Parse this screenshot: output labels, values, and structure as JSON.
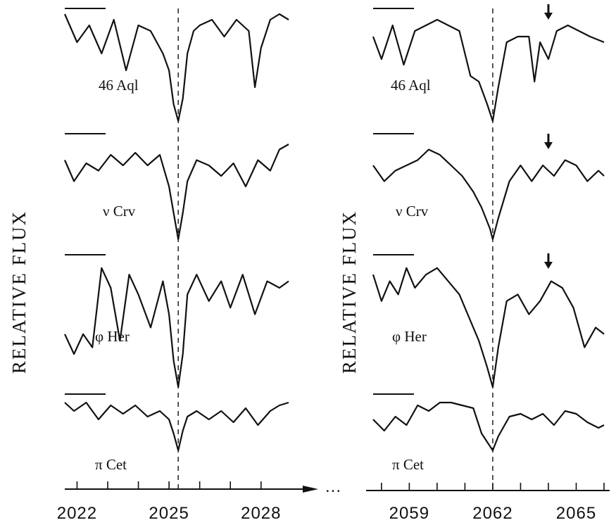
{
  "chart_data": [
    {
      "type": "line",
      "ylabel": "RELATIVE FLUX",
      "xlabel": "",
      "xlim": [
        2021.6,
        2028.9
      ],
      "x_ticks": [
        2022,
        2025,
        2028
      ],
      "line_center": 2025.3,
      "series": [
        {
          "name": "46 Aql",
          "x": [
            2021.6,
            2022.0,
            2022.4,
            2022.8,
            2023.2,
            2023.6,
            2024.0,
            2024.4,
            2024.8,
            2025.0,
            2025.15,
            2025.3,
            2025.45,
            2025.6,
            2025.8,
            2026.0,
            2026.4,
            2026.8,
            2027.2,
            2027.6,
            2027.8,
            2028.0,
            2028.3,
            2028.6,
            2028.9
          ],
          "y": [
            0.95,
            0.7,
            0.85,
            0.6,
            0.9,
            0.45,
            0.85,
            0.8,
            0.6,
            0.45,
            0.15,
            0.0,
            0.2,
            0.6,
            0.8,
            0.85,
            0.9,
            0.75,
            0.9,
            0.8,
            0.3,
            0.65,
            0.9,
            0.95,
            0.9
          ]
        },
        {
          "name": "ν Crv",
          "x": [
            2021.6,
            2021.9,
            2022.3,
            2022.7,
            2023.1,
            2023.5,
            2023.9,
            2024.3,
            2024.7,
            2025.0,
            2025.15,
            2025.3,
            2025.45,
            2025.6,
            2025.9,
            2026.3,
            2026.7,
            2027.1,
            2027.5,
            2027.9,
            2028.3,
            2028.6,
            2028.9
          ],
          "y": [
            0.75,
            0.55,
            0.72,
            0.65,
            0.8,
            0.7,
            0.82,
            0.7,
            0.8,
            0.5,
            0.25,
            0.0,
            0.25,
            0.55,
            0.75,
            0.7,
            0.6,
            0.72,
            0.5,
            0.75,
            0.65,
            0.85,
            0.9
          ]
        },
        {
          "name": "φ Her",
          "x": [
            2021.6,
            2021.9,
            2022.2,
            2022.5,
            2022.8,
            2023.1,
            2023.4,
            2023.7,
            2024.0,
            2024.4,
            2024.8,
            2025.0,
            2025.15,
            2025.3,
            2025.45,
            2025.6,
            2025.9,
            2026.3,
            2026.7,
            2027.0,
            2027.4,
            2027.8,
            2028.2,
            2028.6,
            2028.9
          ],
          "y": [
            0.4,
            0.25,
            0.4,
            0.3,
            0.9,
            0.75,
            0.35,
            0.85,
            0.7,
            0.45,
            0.8,
            0.55,
            0.2,
            0.0,
            0.25,
            0.7,
            0.85,
            0.65,
            0.8,
            0.6,
            0.85,
            0.55,
            0.8,
            0.75,
            0.8
          ]
        },
        {
          "name": "π Cet",
          "x": [
            2021.6,
            2021.9,
            2022.3,
            2022.7,
            2023.1,
            2023.5,
            2023.9,
            2024.3,
            2024.7,
            2025.0,
            2025.15,
            2025.3,
            2025.45,
            2025.6,
            2025.9,
            2026.3,
            2026.7,
            2027.1,
            2027.5,
            2027.9,
            2028.3,
            2028.6,
            2028.9
          ],
          "y": [
            0.85,
            0.7,
            0.85,
            0.55,
            0.8,
            0.65,
            0.8,
            0.6,
            0.7,
            0.55,
            0.3,
            0.0,
            0.35,
            0.6,
            0.7,
            0.55,
            0.7,
            0.5,
            0.75,
            0.45,
            0.7,
            0.8,
            0.85
          ]
        }
      ],
      "labels": [
        "46 Aql",
        "ν Crv",
        "φ Her",
        "π Cet"
      ]
    },
    {
      "type": "line",
      "ylabel": "RELATIVE FLUX",
      "xlabel": "",
      "xlim": [
        2057.7,
        2066.0
      ],
      "x_ticks": [
        2059,
        2062,
        2065
      ],
      "line_center": 2062.0,
      "arrow_at": 2064.0,
      "series": [
        {
          "name": "46 Aql",
          "x": [
            2057.7,
            2058.0,
            2058.4,
            2058.8,
            2059.2,
            2059.6,
            2060.0,
            2060.4,
            2060.8,
            2061.2,
            2061.5,
            2061.8,
            2062.0,
            2062.2,
            2062.5,
            2062.9,
            2063.3,
            2063.5,
            2063.7,
            2064.0,
            2064.3,
            2064.7,
            2065.1,
            2065.5,
            2066.0
          ],
          "y": [
            0.75,
            0.55,
            0.85,
            0.5,
            0.8,
            0.85,
            0.9,
            0.85,
            0.8,
            0.4,
            0.35,
            0.15,
            0.0,
            0.3,
            0.7,
            0.75,
            0.75,
            0.35,
            0.7,
            0.55,
            0.8,
            0.85,
            0.8,
            0.75,
            0.7
          ]
        },
        {
          "name": "ν Crv",
          "x": [
            2057.7,
            2058.1,
            2058.5,
            2058.9,
            2059.3,
            2059.7,
            2060.1,
            2060.5,
            2060.9,
            2061.3,
            2061.6,
            2061.9,
            2062.0,
            2062.2,
            2062.6,
            2063.0,
            2063.4,
            2063.8,
            2064.2,
            2064.6,
            2065.0,
            2065.4,
            2065.8,
            2066.0
          ],
          "y": [
            0.7,
            0.55,
            0.65,
            0.7,
            0.75,
            0.85,
            0.8,
            0.7,
            0.6,
            0.45,
            0.3,
            0.1,
            0.0,
            0.2,
            0.55,
            0.7,
            0.55,
            0.7,
            0.6,
            0.75,
            0.7,
            0.55,
            0.65,
            0.6
          ]
        },
        {
          "name": "φ Her",
          "x": [
            2057.7,
            2058.0,
            2058.3,
            2058.6,
            2058.9,
            2059.2,
            2059.6,
            2060.0,
            2060.4,
            2060.8,
            2061.2,
            2061.5,
            2061.8,
            2062.0,
            2062.2,
            2062.5,
            2062.9,
            2063.3,
            2063.7,
            2064.1,
            2064.5,
            2064.9,
            2065.3,
            2065.7,
            2066.0
          ],
          "y": [
            0.85,
            0.65,
            0.8,
            0.7,
            0.9,
            0.75,
            0.85,
            0.9,
            0.8,
            0.7,
            0.5,
            0.35,
            0.15,
            0.0,
            0.3,
            0.65,
            0.7,
            0.55,
            0.65,
            0.8,
            0.75,
            0.6,
            0.3,
            0.45,
            0.4
          ]
        },
        {
          "name": "π Cet",
          "x": [
            2057.7,
            2058.1,
            2058.5,
            2058.9,
            2059.3,
            2059.7,
            2060.1,
            2060.5,
            2060.9,
            2061.3,
            2061.6,
            2061.8,
            2062.0,
            2062.2,
            2062.6,
            2063.0,
            2063.4,
            2063.8,
            2064.2,
            2064.6,
            2065.0,
            2065.4,
            2065.8,
            2066.0
          ],
          "y": [
            0.55,
            0.35,
            0.6,
            0.45,
            0.8,
            0.7,
            0.85,
            0.85,
            0.8,
            0.75,
            0.3,
            0.15,
            0.0,
            0.25,
            0.6,
            0.65,
            0.55,
            0.65,
            0.45,
            0.7,
            0.65,
            0.5,
            0.4,
            0.45
          ]
        }
      ],
      "labels": [
        "46 Aql",
        "ν Crv",
        "φ Her",
        "π Cet"
      ]
    }
  ],
  "axis_break": "...",
  "colors": {
    "ink": "#111111",
    "background": "#ffffff"
  }
}
